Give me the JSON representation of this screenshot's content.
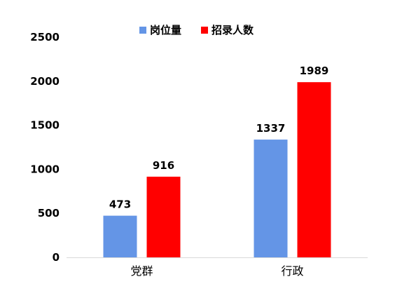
{
  "chart_data": {
    "type": "bar",
    "categories": [
      "党群",
      "行政"
    ],
    "series": [
      {
        "name": "岗位量",
        "values": [
          473,
          1337
        ],
        "color": "#6495E6"
      },
      {
        "name": "招录人数",
        "values": [
          916,
          1989
        ],
        "color": "#FF0000"
      }
    ],
    "ylim": [
      0,
      2500
    ],
    "yticks": [
      0,
      500,
      1000,
      1500,
      2000,
      2500
    ],
    "grid": false,
    "legend_position": "top-center",
    "data_labels": true
  }
}
